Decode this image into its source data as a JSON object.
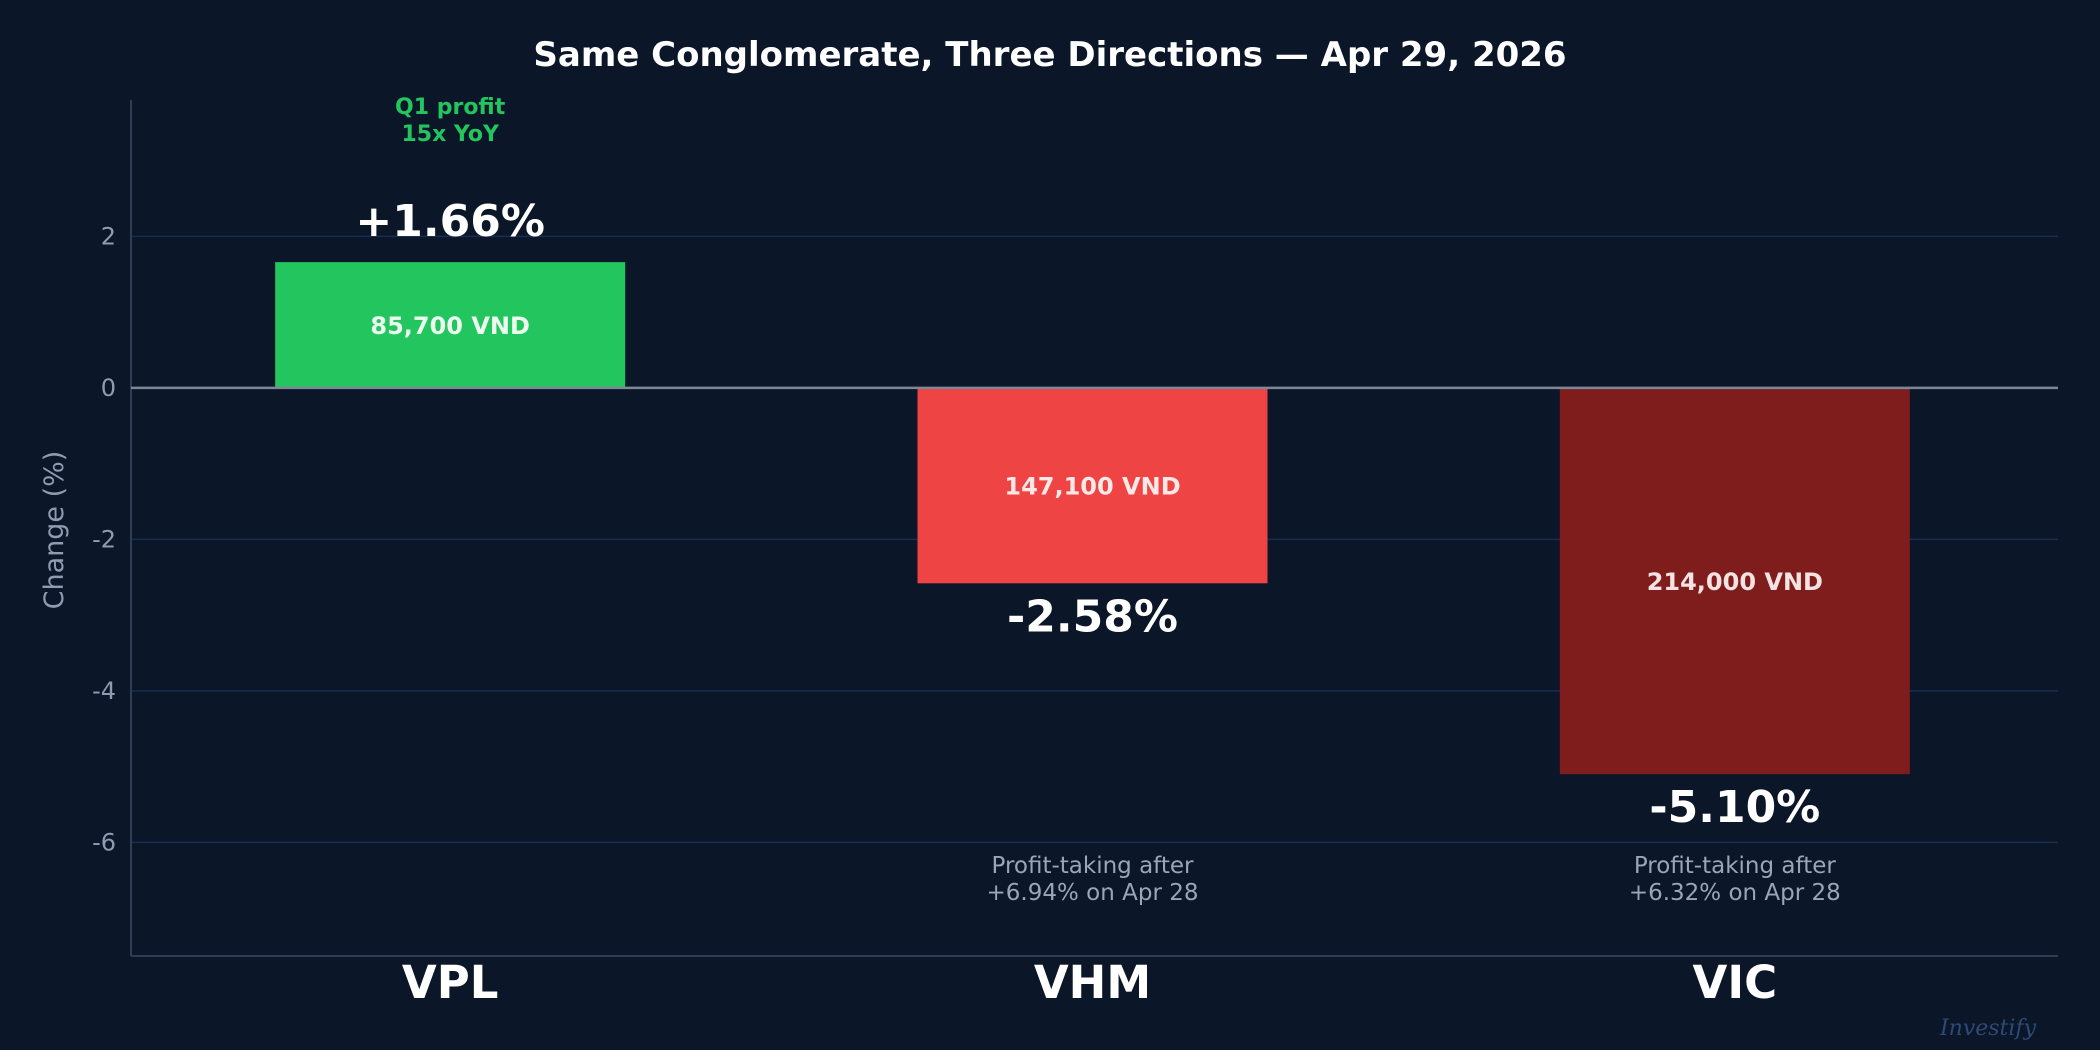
{
  "chart_data": {
    "type": "bar",
    "title": "Same Conglomerate, Three Directions — Apr 29, 2026",
    "xlabel": "",
    "ylabel": "Change (%)",
    "ylim": [
      -7.5,
      3.8
    ],
    "yticks": [
      2,
      0,
      -2,
      -4,
      -6
    ],
    "grid": true,
    "categories": [
      "VPL",
      "VHM",
      "VIC"
    ],
    "values": [
      1.66,
      -2.58,
      -5.1
    ],
    "value_labels": [
      "+1.66%",
      "-2.58%",
      "-5.10%"
    ],
    "price_labels": [
      "85,700 VND",
      "147,100 VND",
      "214,000 VND"
    ],
    "bar_colors": [
      "#22c55e",
      "#ef4444",
      "#7f1d1d"
    ],
    "price_label_colors": [
      "#ecfdf0",
      "#fde8e8",
      "#f5e3e3"
    ],
    "annotations": [
      {
        "category": "VPL",
        "lines": [
          "Q1 profit",
          "15x YoY"
        ],
        "color": "#22c55e"
      },
      {
        "category": "VHM",
        "lines": [
          "Profit-taking after",
          "+6.94% on Apr 28"
        ],
        "color": "#9aa5b8"
      },
      {
        "category": "VIC",
        "lines": [
          "Profit-taking after",
          "+6.32% on Apr 28"
        ],
        "color": "#9aa5b8"
      }
    ],
    "watermark": "Investify"
  }
}
